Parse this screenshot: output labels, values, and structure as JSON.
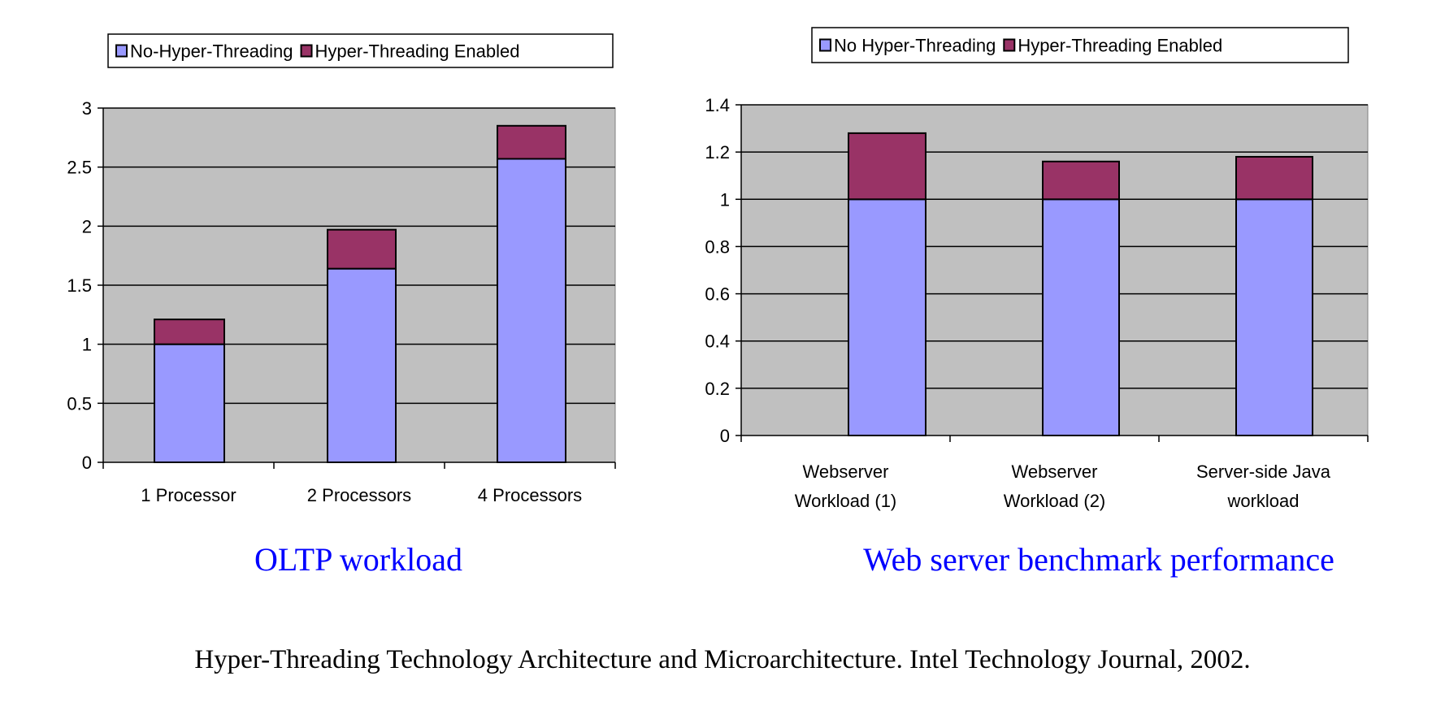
{
  "colors": {
    "no_ht": "#9999ff",
    "ht": "#993366",
    "plot_bg": "#c0c0c0",
    "title": "#0000ff"
  },
  "caption": "Hyper-Threading Technology Architecture and Microarchitecture. Intel Technology Journal, 2002.",
  "chart_data": [
    {
      "type": "bar",
      "stacked": true,
      "title": "OLTP workload",
      "categories": [
        "1 Processor",
        "2 Processors",
        "4 Processors"
      ],
      "series": [
        {
          "name": "No-Hyper-Threading",
          "values": [
            1.0,
            1.64,
            2.57
          ]
        },
        {
          "name": "Hyper-Threading Enabled",
          "values": [
            0.21,
            0.33,
            0.28
          ]
        }
      ],
      "ylim": [
        0,
        3
      ],
      "yticks": [
        "0",
        "0.5",
        "1",
        "1.5",
        "2",
        "2.5",
        "3"
      ],
      "ytick_values": [
        0,
        0.5,
        1,
        1.5,
        2,
        2.5,
        3
      ],
      "grid": true,
      "legend": "top"
    },
    {
      "type": "bar",
      "stacked": true,
      "title": "Web server benchmark performance",
      "categories": [
        [
          "Webserver",
          "Workload (1)"
        ],
        [
          "Webserver",
          "Workload (2)"
        ],
        [
          "Server-side Java",
          "workload"
        ]
      ],
      "series": [
        {
          "name": "No Hyper-Threading",
          "values": [
            1.0,
            1.0,
            1.0
          ]
        },
        {
          "name": "Hyper-Threading Enabled",
          "values": [
            0.28,
            0.16,
            0.18
          ]
        }
      ],
      "ylim": [
        0,
        1.4
      ],
      "yticks": [
        "0",
        "0.2",
        "0.4",
        "0.6",
        "0.8",
        "1",
        "1.2",
        "1.4"
      ],
      "ytick_values": [
        0,
        0.2,
        0.4,
        0.6,
        0.8,
        1,
        1.2,
        1.4
      ],
      "grid": true,
      "legend": "top"
    }
  ]
}
